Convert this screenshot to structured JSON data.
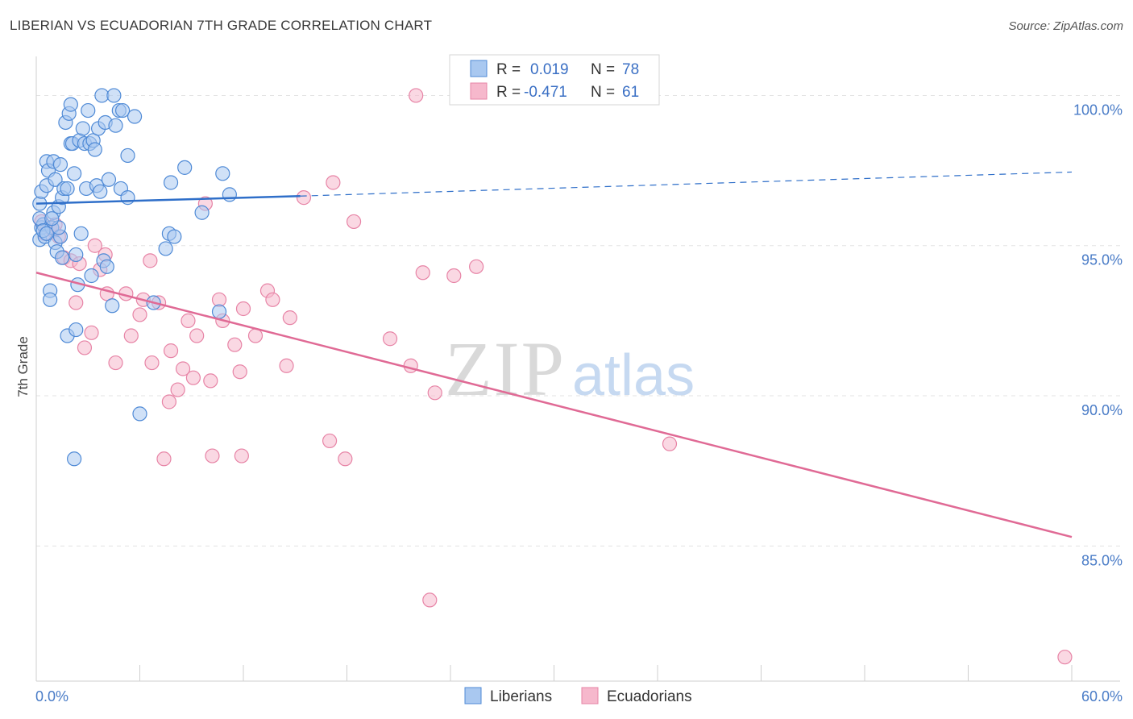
{
  "title": "LIBERIAN VS ECUADORIAN 7TH GRADE CORRELATION CHART",
  "source": "Source: ZipAtlas.com",
  "watermark": {
    "zip": "ZIP",
    "atlas": "atlas"
  },
  "legend": {
    "rows": [
      {
        "r_label": "R =",
        "r_value": "0.019",
        "n_label": "N =",
        "n_value": "78"
      },
      {
        "r_label": "R =",
        "r_value": "-0.471",
        "n_label": "N =",
        "n_value": "61"
      }
    ]
  },
  "bottom_legend": [
    "Liberians",
    "Ecuadorians"
  ],
  "colors": {
    "blue_fill": "#a9c8f0",
    "blue_stroke": "#4f8ad6",
    "blue_line": "#2f6fc9",
    "pink_fill": "#f6b8cc",
    "pink_stroke": "#e784a6",
    "pink_line": "#e06a95",
    "grid": "#e3e3e3",
    "tick_label": "#4a7cc7"
  },
  "chart_data": {
    "type": "scatter",
    "title": "LIBERIAN VS ECUADORIAN 7TH GRADE CORRELATION CHART",
    "xlabel": "",
    "ylabel": "7th Grade",
    "xlim": [
      0,
      60
    ],
    "ylim": [
      80.5,
      101.3
    ],
    "x_tick_labels": [
      {
        "value": 0,
        "label": "0.0%"
      },
      {
        "value": 60,
        "label": "60.0%"
      }
    ],
    "y_ticks": [
      {
        "value": 100,
        "label": "100.0%"
      },
      {
        "value": 95,
        "label": "95.0%"
      },
      {
        "value": 90,
        "label": "90.0%"
      },
      {
        "value": 85,
        "label": "85.0%"
      }
    ],
    "grid": true,
    "series": [
      {
        "name": "Liberians",
        "stats": {
          "r": 0.019,
          "n": 78
        },
        "trend": {
          "x0": 0,
          "y0": 96.4,
          "x1": 15.3,
          "y1": 96.65,
          "dashed_to_x": 60,
          "dashed_y": 97.45
        },
        "points": [
          [
            0.2,
            96.4
          ],
          [
            0.2,
            95.2
          ],
          [
            0.3,
            95.6
          ],
          [
            0.3,
            96.8
          ],
          [
            0.4,
            95.7
          ],
          [
            0.5,
            95.3
          ],
          [
            0.6,
            97.0
          ],
          [
            0.6,
            97.8
          ],
          [
            0.7,
            97.5
          ],
          [
            0.8,
            93.5
          ],
          [
            0.8,
            93.2
          ],
          [
            0.9,
            95.6
          ],
          [
            1.0,
            96.1
          ],
          [
            1.0,
            97.8
          ],
          [
            1.1,
            95.1
          ],
          [
            1.1,
            97.2
          ],
          [
            1.2,
            94.8
          ],
          [
            1.3,
            96.3
          ],
          [
            1.4,
            95.3
          ],
          [
            1.4,
            97.7
          ],
          [
            1.5,
            96.6
          ],
          [
            1.5,
            94.6
          ],
          [
            1.6,
            96.9
          ],
          [
            1.7,
            99.1
          ],
          [
            1.8,
            96.9
          ],
          [
            1.8,
            92.0
          ],
          [
            1.9,
            99.4
          ],
          [
            2.0,
            99.7
          ],
          [
            2.0,
            98.4
          ],
          [
            2.1,
            98.4
          ],
          [
            2.2,
            97.4
          ],
          [
            2.3,
            94.7
          ],
          [
            2.3,
            92.2
          ],
          [
            2.4,
            93.7
          ],
          [
            2.5,
            98.5
          ],
          [
            2.6,
            95.4
          ],
          [
            2.7,
            98.9
          ],
          [
            2.8,
            98.4
          ],
          [
            2.9,
            96.9
          ],
          [
            3.0,
            99.5
          ],
          [
            3.1,
            98.4
          ],
          [
            3.2,
            94.0
          ],
          [
            3.3,
            98.5
          ],
          [
            3.4,
            98.2
          ],
          [
            3.5,
            97.0
          ],
          [
            3.6,
            98.9
          ],
          [
            3.7,
            96.8
          ],
          [
            3.8,
            100.0
          ],
          [
            3.9,
            94.5
          ],
          [
            4.0,
            99.1
          ],
          [
            4.1,
            94.3
          ],
          [
            4.2,
            97.2
          ],
          [
            4.4,
            93.0
          ],
          [
            4.5,
            100.0
          ],
          [
            4.6,
            99.0
          ],
          [
            4.8,
            99.5
          ],
          [
            4.9,
            96.9
          ],
          [
            5.0,
            99.5
          ],
          [
            5.3,
            96.6
          ],
          [
            5.3,
            98.0
          ],
          [
            5.7,
            99.3
          ],
          [
            6.0,
            89.4
          ],
          [
            6.8,
            93.1
          ],
          [
            7.5,
            94.9
          ],
          [
            7.7,
            95.4
          ],
          [
            7.8,
            97.1
          ],
          [
            8.0,
            95.3
          ],
          [
            8.6,
            97.6
          ],
          [
            9.6,
            96.1
          ],
          [
            10.6,
            92.8
          ],
          [
            10.8,
            97.4
          ],
          [
            11.2,
            96.7
          ],
          [
            2.2,
            87.9
          ],
          [
            0.2,
            95.9
          ],
          [
            0.4,
            95.5
          ],
          [
            0.6,
            95.4
          ],
          [
            1.3,
            95.6
          ],
          [
            0.9,
            95.9
          ]
        ]
      },
      {
        "name": "Ecuadorians",
        "stats": {
          "r": -0.471,
          "n": 61
        },
        "trend": {
          "x0": 0,
          "y0": 94.1,
          "x1": 60,
          "y1": 85.3
        },
        "points": [
          [
            0.3,
            95.8
          ],
          [
            0.5,
            95.4
          ],
          [
            0.8,
            95.6
          ],
          [
            1.0,
            95.5
          ],
          [
            1.1,
            95.7
          ],
          [
            1.3,
            95.3
          ],
          [
            1.6,
            94.6
          ],
          [
            2.0,
            94.5
          ],
          [
            2.3,
            93.1
          ],
          [
            2.5,
            94.4
          ],
          [
            2.8,
            91.6
          ],
          [
            3.2,
            92.1
          ],
          [
            3.4,
            95.0
          ],
          [
            3.7,
            94.2
          ],
          [
            4.0,
            94.7
          ],
          [
            4.1,
            93.4
          ],
          [
            4.6,
            91.1
          ],
          [
            5.2,
            93.4
          ],
          [
            5.5,
            92.0
          ],
          [
            6.0,
            92.7
          ],
          [
            6.2,
            93.2
          ],
          [
            6.6,
            94.5
          ],
          [
            6.7,
            91.1
          ],
          [
            7.1,
            93.1
          ],
          [
            7.4,
            87.9
          ],
          [
            7.7,
            89.8
          ],
          [
            7.8,
            91.5
          ],
          [
            8.2,
            90.2
          ],
          [
            8.5,
            90.9
          ],
          [
            8.8,
            92.5
          ],
          [
            9.1,
            90.6
          ],
          [
            9.3,
            92.0
          ],
          [
            9.8,
            96.4
          ],
          [
            10.1,
            90.5
          ],
          [
            10.2,
            88.0
          ],
          [
            10.6,
            93.2
          ],
          [
            10.8,
            92.5
          ],
          [
            11.5,
            91.7
          ],
          [
            11.8,
            90.8
          ],
          [
            11.9,
            88.0
          ],
          [
            12.0,
            92.9
          ],
          [
            12.7,
            92.0
          ],
          [
            13.4,
            93.5
          ],
          [
            13.7,
            93.2
          ],
          [
            14.5,
            91.0
          ],
          [
            14.7,
            92.6
          ],
          [
            15.5,
            96.6
          ],
          [
            17.0,
            88.5
          ],
          [
            17.2,
            97.1
          ],
          [
            17.9,
            87.9
          ],
          [
            18.4,
            95.8
          ],
          [
            20.5,
            91.9
          ],
          [
            21.7,
            91.0
          ],
          [
            22.0,
            100.0
          ],
          [
            22.4,
            94.1
          ],
          [
            22.8,
            83.2
          ],
          [
            23.1,
            90.1
          ],
          [
            24.2,
            94.0
          ],
          [
            25.5,
            94.3
          ],
          [
            36.7,
            88.4
          ],
          [
            59.6,
            81.3
          ]
        ]
      }
    ]
  }
}
